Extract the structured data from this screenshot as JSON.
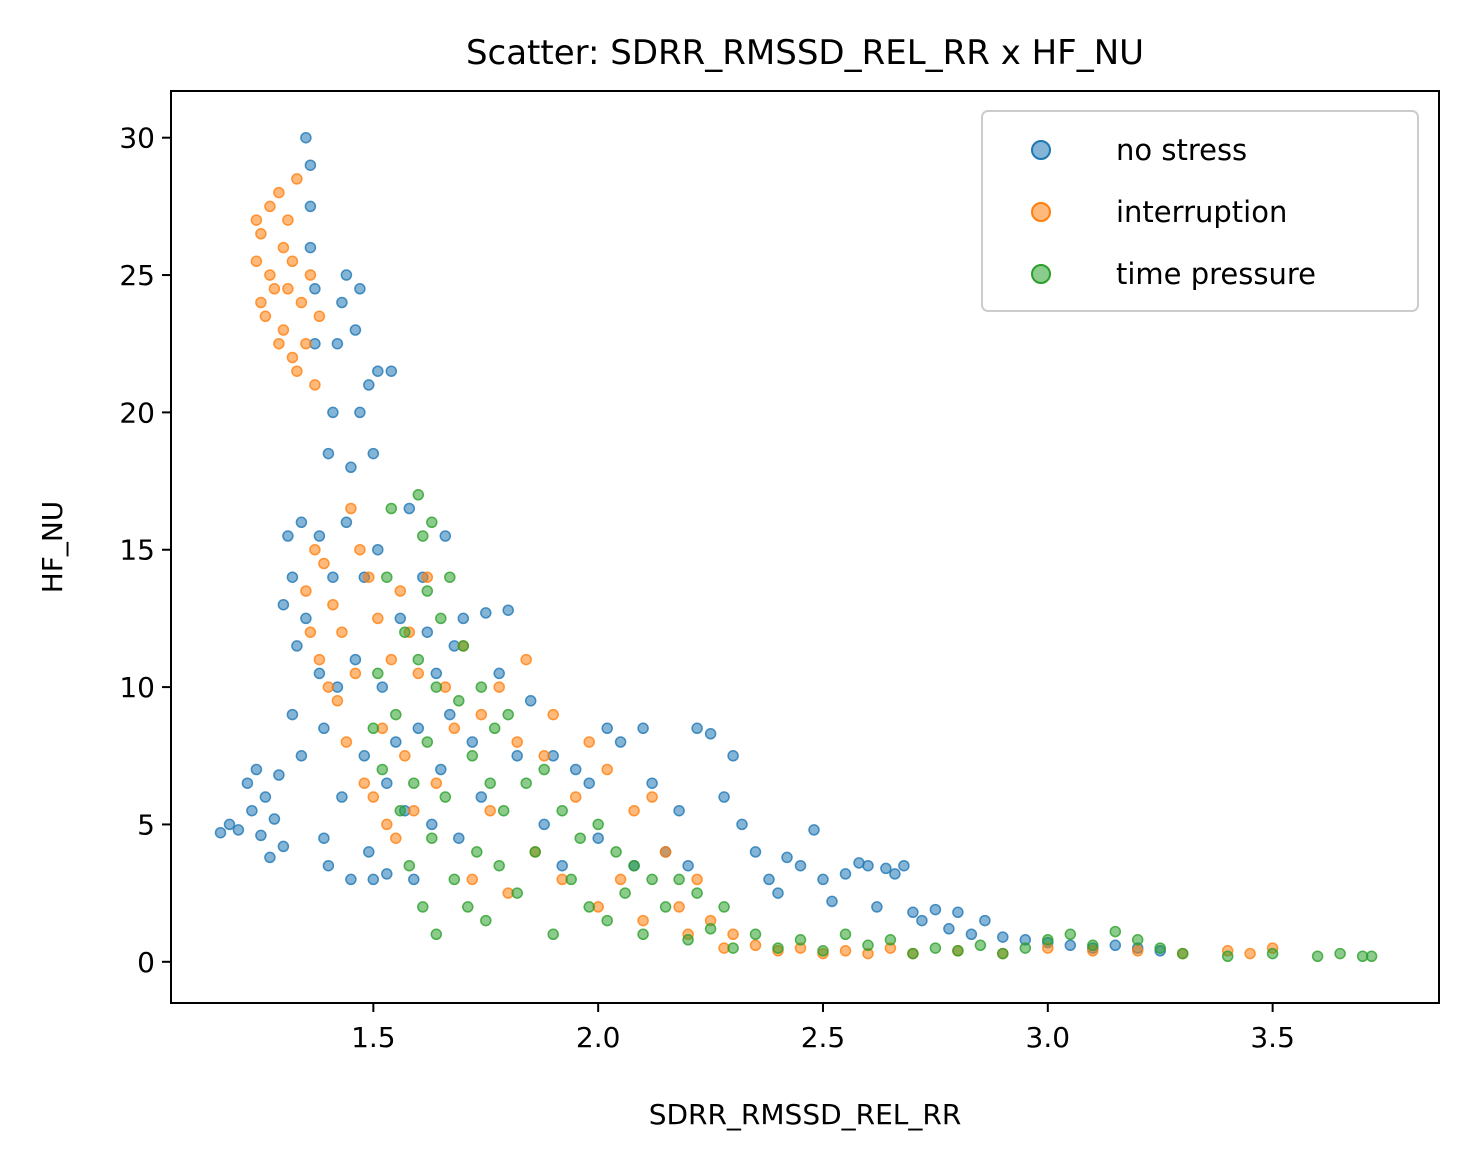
{
  "chart_data": {
    "type": "scatter",
    "title": "Scatter: SDRR_RMSSD_REL_RR x HF_NU",
    "xlabel": "SDRR_RMSSD_REL_RR",
    "ylabel": "HF_NU",
    "xlim": [
      1.05,
      3.87
    ],
    "ylim": [
      -1.5,
      31.7
    ],
    "x_ticks": [
      1.5,
      2.0,
      2.5,
      3.0,
      3.5
    ],
    "x_tick_labels": [
      "1.5",
      "2.0",
      "2.5",
      "3.0",
      "3.5"
    ],
    "y_ticks": [
      0,
      5,
      10,
      15,
      20,
      25,
      30
    ],
    "y_tick_labels": [
      "0",
      "5",
      "10",
      "15",
      "20",
      "25",
      "30"
    ],
    "grid": false,
    "legend_position": "top-right",
    "series": [
      {
        "name": "no stress",
        "color": "#1f77b4",
        "points": [
          [
            1.16,
            4.7
          ],
          [
            1.18,
            5.0
          ],
          [
            1.2,
            4.8
          ],
          [
            1.22,
            6.5
          ],
          [
            1.23,
            5.5
          ],
          [
            1.24,
            7.0
          ],
          [
            1.25,
            4.6
          ],
          [
            1.26,
            6.0
          ],
          [
            1.27,
            3.8
          ],
          [
            1.28,
            5.2
          ],
          [
            1.29,
            6.8
          ],
          [
            1.3,
            4.2
          ],
          [
            1.3,
            13.0
          ],
          [
            1.31,
            15.5
          ],
          [
            1.32,
            9.0
          ],
          [
            1.32,
            14.0
          ],
          [
            1.33,
            11.5
          ],
          [
            1.34,
            7.5
          ],
          [
            1.34,
            16.0
          ],
          [
            1.35,
            12.5
          ],
          [
            1.35,
            30.0
          ],
          [
            1.36,
            29.0
          ],
          [
            1.36,
            27.5
          ],
          [
            1.36,
            26.0
          ],
          [
            1.37,
            24.5
          ],
          [
            1.37,
            22.5
          ],
          [
            1.38,
            15.5
          ],
          [
            1.38,
            10.5
          ],
          [
            1.39,
            8.5
          ],
          [
            1.39,
            4.5
          ],
          [
            1.4,
            3.5
          ],
          [
            1.4,
            18.5
          ],
          [
            1.41,
            20.0
          ],
          [
            1.41,
            14.0
          ],
          [
            1.42,
            22.5
          ],
          [
            1.42,
            10.0
          ],
          [
            1.43,
            24.0
          ],
          [
            1.43,
            6.0
          ],
          [
            1.44,
            25.0
          ],
          [
            1.44,
            16.0
          ],
          [
            1.45,
            18.0
          ],
          [
            1.45,
            3.0
          ],
          [
            1.46,
            23.0
          ],
          [
            1.46,
            11.0
          ],
          [
            1.47,
            24.5
          ],
          [
            1.47,
            20.0
          ],
          [
            1.48,
            14.0
          ],
          [
            1.48,
            7.5
          ],
          [
            1.49,
            21.0
          ],
          [
            1.49,
            4.0
          ],
          [
            1.5,
            18.5
          ],
          [
            1.5,
            3.0
          ],
          [
            1.51,
            15.0
          ],
          [
            1.51,
            21.5
          ],
          [
            1.52,
            10.0
          ],
          [
            1.53,
            6.5
          ],
          [
            1.53,
            3.2
          ],
          [
            1.54,
            21.5
          ],
          [
            1.55,
            8.0
          ],
          [
            1.56,
            12.5
          ],
          [
            1.57,
            5.5
          ],
          [
            1.58,
            16.5
          ],
          [
            1.59,
            3.0
          ],
          [
            1.6,
            8.5
          ],
          [
            1.61,
            14.0
          ],
          [
            1.62,
            12.0
          ],
          [
            1.63,
            5.0
          ],
          [
            1.64,
            10.5
          ],
          [
            1.65,
            7.0
          ],
          [
            1.66,
            15.5
          ],
          [
            1.67,
            9.0
          ],
          [
            1.68,
            11.5
          ],
          [
            1.69,
            4.5
          ],
          [
            1.7,
            12.5
          ],
          [
            1.72,
            8.0
          ],
          [
            1.74,
            6.0
          ],
          [
            1.75,
            12.7
          ],
          [
            1.78,
            10.5
          ],
          [
            1.8,
            12.8
          ],
          [
            1.82,
            7.5
          ],
          [
            1.85,
            9.5
          ],
          [
            1.88,
            5.0
          ],
          [
            1.9,
            7.5
          ],
          [
            1.92,
            3.5
          ],
          [
            1.95,
            7.0
          ],
          [
            1.98,
            6.5
          ],
          [
            2.0,
            4.5
          ],
          [
            2.02,
            8.5
          ],
          [
            2.05,
            8.0
          ],
          [
            2.08,
            3.5
          ],
          [
            2.1,
            8.5
          ],
          [
            2.12,
            6.5
          ],
          [
            2.15,
            4.0
          ],
          [
            2.18,
            5.5
          ],
          [
            2.2,
            3.5
          ],
          [
            2.22,
            8.5
          ],
          [
            2.25,
            8.3
          ],
          [
            2.28,
            6.0
          ],
          [
            2.3,
            7.5
          ],
          [
            2.32,
            5.0
          ],
          [
            2.35,
            4.0
          ],
          [
            2.38,
            3.0
          ],
          [
            2.4,
            2.5
          ],
          [
            2.42,
            3.8
          ],
          [
            2.45,
            3.5
          ],
          [
            2.48,
            4.8
          ],
          [
            2.5,
            3.0
          ],
          [
            2.52,
            2.2
          ],
          [
            2.55,
            3.2
          ],
          [
            2.58,
            3.6
          ],
          [
            2.6,
            3.5
          ],
          [
            2.62,
            2.0
          ],
          [
            2.64,
            3.4
          ],
          [
            2.66,
            3.2
          ],
          [
            2.68,
            3.5
          ],
          [
            2.7,
            1.8
          ],
          [
            2.72,
            1.5
          ],
          [
            2.75,
            1.9
          ],
          [
            2.78,
            1.2
          ],
          [
            2.8,
            1.8
          ],
          [
            2.83,
            1.0
          ],
          [
            2.86,
            1.5
          ],
          [
            2.9,
            0.9
          ],
          [
            2.95,
            0.8
          ],
          [
            3.0,
            0.7
          ],
          [
            3.05,
            0.6
          ],
          [
            3.1,
            0.5
          ],
          [
            3.15,
            0.6
          ],
          [
            3.2,
            0.5
          ],
          [
            3.25,
            0.4
          ]
        ]
      },
      {
        "name": "interruption",
        "color": "#ff7f0e",
        "points": [
          [
            1.24,
            27.0
          ],
          [
            1.24,
            25.5
          ],
          [
            1.25,
            24.0
          ],
          [
            1.25,
            26.5
          ],
          [
            1.26,
            23.5
          ],
          [
            1.27,
            27.5
          ],
          [
            1.27,
            25.0
          ],
          [
            1.28,
            24.5
          ],
          [
            1.29,
            28.0
          ],
          [
            1.29,
            22.5
          ],
          [
            1.3,
            26.0
          ],
          [
            1.3,
            23.0
          ],
          [
            1.31,
            27.0
          ],
          [
            1.31,
            24.5
          ],
          [
            1.32,
            22.0
          ],
          [
            1.32,
            25.5
          ],
          [
            1.33,
            28.5
          ],
          [
            1.33,
            21.5
          ],
          [
            1.34,
            24.0
          ],
          [
            1.35,
            22.5
          ],
          [
            1.35,
            13.5
          ],
          [
            1.36,
            12.0
          ],
          [
            1.36,
            25.0
          ],
          [
            1.37,
            15.0
          ],
          [
            1.37,
            21.0
          ],
          [
            1.38,
            23.5
          ],
          [
            1.38,
            11.0
          ],
          [
            1.39,
            14.5
          ],
          [
            1.4,
            10.0
          ],
          [
            1.41,
            13.0
          ],
          [
            1.42,
            9.5
          ],
          [
            1.43,
            12.0
          ],
          [
            1.44,
            8.0
          ],
          [
            1.45,
            16.5
          ],
          [
            1.46,
            10.5
          ],
          [
            1.47,
            15.0
          ],
          [
            1.48,
            6.5
          ],
          [
            1.49,
            14.0
          ],
          [
            1.5,
            6.0
          ],
          [
            1.51,
            12.5
          ],
          [
            1.52,
            8.5
          ],
          [
            1.53,
            5.0
          ],
          [
            1.54,
            11.0
          ],
          [
            1.55,
            4.5
          ],
          [
            1.56,
            13.5
          ],
          [
            1.57,
            7.5
          ],
          [
            1.58,
            12.0
          ],
          [
            1.59,
            5.5
          ],
          [
            1.6,
            10.5
          ],
          [
            1.62,
            14.0
          ],
          [
            1.64,
            6.5
          ],
          [
            1.66,
            10.0
          ],
          [
            1.68,
            8.5
          ],
          [
            1.7,
            11.5
          ],
          [
            1.72,
            3.0
          ],
          [
            1.74,
            9.0
          ],
          [
            1.76,
            5.5
          ],
          [
            1.78,
            10.0
          ],
          [
            1.8,
            2.5
          ],
          [
            1.82,
            8.0
          ],
          [
            1.84,
            11.0
          ],
          [
            1.86,
            4.0
          ],
          [
            1.88,
            7.5
          ],
          [
            1.9,
            9.0
          ],
          [
            1.92,
            3.0
          ],
          [
            1.95,
            6.0
          ],
          [
            1.98,
            8.0
          ],
          [
            2.0,
            2.0
          ],
          [
            2.02,
            7.0
          ],
          [
            2.05,
            3.0
          ],
          [
            2.08,
            5.5
          ],
          [
            2.1,
            1.5
          ],
          [
            2.12,
            6.0
          ],
          [
            2.15,
            4.0
          ],
          [
            2.18,
            2.0
          ],
          [
            2.2,
            1.0
          ],
          [
            2.22,
            3.0
          ],
          [
            2.25,
            1.5
          ],
          [
            2.28,
            0.5
          ],
          [
            2.3,
            1.0
          ],
          [
            2.35,
            0.6
          ],
          [
            2.4,
            0.4
          ],
          [
            2.45,
            0.5
          ],
          [
            2.5,
            0.3
          ],
          [
            2.55,
            0.4
          ],
          [
            2.6,
            0.3
          ],
          [
            2.65,
            0.5
          ],
          [
            2.7,
            0.3
          ],
          [
            2.8,
            0.4
          ],
          [
            2.9,
            0.3
          ],
          [
            3.0,
            0.5
          ],
          [
            3.1,
            0.4
          ],
          [
            3.2,
            0.4
          ],
          [
            3.3,
            0.3
          ],
          [
            3.4,
            0.4
          ],
          [
            3.45,
            0.3
          ],
          [
            3.5,
            0.5
          ]
        ]
      },
      {
        "name": "time pressure",
        "color": "#2ca02c",
        "points": [
          [
            1.5,
            8.5
          ],
          [
            1.51,
            10.5
          ],
          [
            1.52,
            7.0
          ],
          [
            1.53,
            14.0
          ],
          [
            1.54,
            16.5
          ],
          [
            1.55,
            9.0
          ],
          [
            1.56,
            5.5
          ],
          [
            1.57,
            12.0
          ],
          [
            1.58,
            3.5
          ],
          [
            1.59,
            6.5
          ],
          [
            1.6,
            17.0
          ],
          [
            1.6,
            11.0
          ],
          [
            1.61,
            15.5
          ],
          [
            1.61,
            2.0
          ],
          [
            1.62,
            13.5
          ],
          [
            1.62,
            8.0
          ],
          [
            1.63,
            16.0
          ],
          [
            1.63,
            4.5
          ],
          [
            1.64,
            10.0
          ],
          [
            1.64,
            1.0
          ],
          [
            1.65,
            12.5
          ],
          [
            1.66,
            6.0
          ],
          [
            1.67,
            14.0
          ],
          [
            1.68,
            3.0
          ],
          [
            1.69,
            9.5
          ],
          [
            1.7,
            11.5
          ],
          [
            1.71,
            2.0
          ],
          [
            1.72,
            7.5
          ],
          [
            1.73,
            4.0
          ],
          [
            1.74,
            10.0
          ],
          [
            1.75,
            1.5
          ],
          [
            1.76,
            6.5
          ],
          [
            1.77,
            8.5
          ],
          [
            1.78,
            3.5
          ],
          [
            1.79,
            5.5
          ],
          [
            1.8,
            9.0
          ],
          [
            1.82,
            2.5
          ],
          [
            1.84,
            6.5
          ],
          [
            1.86,
            4.0
          ],
          [
            1.88,
            7.0
          ],
          [
            1.9,
            1.0
          ],
          [
            1.92,
            5.5
          ],
          [
            1.94,
            3.0
          ],
          [
            1.96,
            4.5
          ],
          [
            1.98,
            2.0
          ],
          [
            2.0,
            5.0
          ],
          [
            2.02,
            1.5
          ],
          [
            2.04,
            4.0
          ],
          [
            2.06,
            2.5
          ],
          [
            2.08,
            3.5
          ],
          [
            2.1,
            1.0
          ],
          [
            2.12,
            3.0
          ],
          [
            2.15,
            2.0
          ],
          [
            2.18,
            3.0
          ],
          [
            2.2,
            0.8
          ],
          [
            2.22,
            2.5
          ],
          [
            2.25,
            1.2
          ],
          [
            2.28,
            2.0
          ],
          [
            2.3,
            0.5
          ],
          [
            2.35,
            1.0
          ],
          [
            2.4,
            0.5
          ],
          [
            2.45,
            0.8
          ],
          [
            2.5,
            0.4
          ],
          [
            2.55,
            1.0
          ],
          [
            2.6,
            0.6
          ],
          [
            2.65,
            0.8
          ],
          [
            2.7,
            0.3
          ],
          [
            2.75,
            0.5
          ],
          [
            2.8,
            0.4
          ],
          [
            2.85,
            0.6
          ],
          [
            2.9,
            0.3
          ],
          [
            2.95,
            0.5
          ],
          [
            3.0,
            0.8
          ],
          [
            3.05,
            1.0
          ],
          [
            3.1,
            0.6
          ],
          [
            3.15,
            1.1
          ],
          [
            3.2,
            0.8
          ],
          [
            3.25,
            0.5
          ],
          [
            3.3,
            0.3
          ],
          [
            3.4,
            0.2
          ],
          [
            3.5,
            0.3
          ],
          [
            3.6,
            0.2
          ],
          [
            3.65,
            0.3
          ],
          [
            3.7,
            0.2
          ],
          [
            3.72,
            0.2
          ]
        ]
      }
    ]
  }
}
